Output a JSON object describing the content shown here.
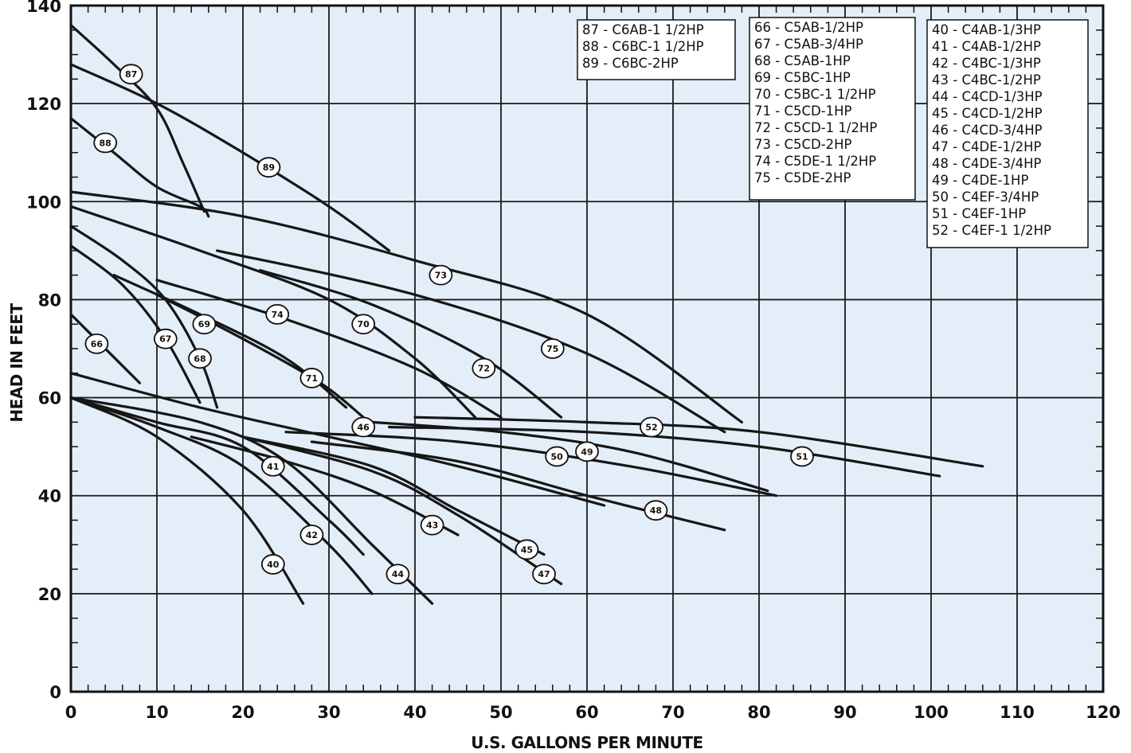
{
  "chart_data": {
    "type": "line",
    "title": "",
    "xlabel": "U.S. GALLONS PER MINUTE",
    "ylabel": "HEAD IN FEET",
    "xlim": [
      0,
      120
    ],
    "ylim": [
      0,
      140
    ],
    "xticks": [
      0,
      10,
      20,
      30,
      40,
      50,
      60,
      70,
      80,
      90,
      100,
      110,
      120
    ],
    "yticks": [
      0,
      20,
      40,
      60,
      80,
      100,
      120,
      140
    ],
    "grid": true,
    "colors": {
      "plot_bg": "#e3eef8",
      "line": "#161616",
      "grid": "#1a1a1a",
      "legend_bg": "#ffffff"
    },
    "legend": [
      [
        "87 - C6AB-1 1/2HP",
        "88 - C6BC-1 1/2HP",
        "89 - C6BC-2HP"
      ],
      [
        "66 - C5AB-1/2HP",
        "67 - C5AB-3/4HP",
        "68 - C5AB-1HP",
        "69 - C5BC-1HP",
        "70 - C5BC-1 1/2HP",
        "71 - C5CD-1HP",
        "72 - C5CD-1 1/2HP",
        "73 - C5CD-2HP",
        "74 - C5DE-1 1/2HP",
        "75 - C5DE-2HP"
      ],
      [
        "40 - C4AB-1/3HP",
        "41 - C4AB-1/2HP",
        "42 - C4BC-1/3HP",
        "43 - C4BC-1/2HP",
        "44 - C4CD-1/3HP",
        "45 - C4CD-1/2HP",
        "46 - C4CD-3/4HP",
        "47 - C4DE-1/2HP",
        "48 - C4DE-3/4HP",
        "49 - C4DE-1HP",
        "50 - C4EF-3/4HP",
        "51 - C4EF-1HP",
        "52 - C4EF-1 1/2HP"
      ]
    ],
    "series": [
      {
        "name": "87",
        "x": [
          0,
          5,
          10,
          13,
          15.5
        ],
        "y": [
          136,
          128,
          119,
          108,
          98
        ],
        "label": [
          7,
          126
        ]
      },
      {
        "name": "88",
        "x": [
          0,
          5,
          10,
          15,
          16
        ],
        "y": [
          117,
          110,
          103,
          99,
          97
        ],
        "label": [
          4,
          112
        ]
      },
      {
        "name": "89",
        "x": [
          0,
          10,
          20,
          30,
          37
        ],
        "y": [
          128,
          120,
          110,
          99,
          90
        ],
        "label": [
          23,
          107
        ]
      },
      {
        "name": "66",
        "x": [
          0,
          4,
          8
        ],
        "y": [
          77,
          70,
          63
        ],
        "label": [
          3,
          71
        ]
      },
      {
        "name": "67",
        "x": [
          0,
          6,
          11,
          15
        ],
        "y": [
          91,
          83,
          72,
          59
        ],
        "label": [
          11,
          72
        ]
      },
      {
        "name": "68",
        "x": [
          0,
          6,
          11,
          15,
          17
        ],
        "y": [
          95,
          88,
          80,
          68,
          58
        ],
        "label": [
          15,
          68
        ]
      },
      {
        "name": "69",
        "x": [
          5,
          15,
          25,
          32
        ],
        "y": [
          85,
          77,
          68,
          58
        ],
        "label": [
          15.5,
          75
        ]
      },
      {
        "name": "70",
        "x": [
          0,
          15,
          30,
          40,
          47
        ],
        "y": [
          99,
          90,
          80,
          68,
          56
        ],
        "label": [
          34,
          75
        ]
      },
      {
        "name": "71",
        "x": [
          10,
          20,
          29,
          34
        ],
        "y": [
          81,
          72,
          63,
          56
        ],
        "label": [
          28,
          64
        ]
      },
      {
        "name": "72",
        "x": [
          22,
          35,
          48,
          57
        ],
        "y": [
          86,
          79,
          68,
          56
        ],
        "label": [
          48,
          66
        ]
      },
      {
        "name": "73",
        "x": [
          0,
          20,
          40,
          60,
          78
        ],
        "y": [
          102,
          97,
          88,
          77,
          55
        ],
        "label": [
          43,
          85
        ]
      },
      {
        "name": "74",
        "x": [
          10,
          25,
          40,
          50
        ],
        "y": [
          84,
          76,
          66,
          56
        ],
        "label": [
          24,
          77
        ]
      },
      {
        "name": "75",
        "x": [
          17,
          40,
          60,
          76
        ],
        "y": [
          90,
          81,
          69,
          53
        ],
        "label": [
          56,
          70
        ]
      },
      {
        "name": "40",
        "x": [
          0,
          10,
          20,
          27
        ],
        "y": [
          60,
          52,
          37,
          18
        ],
        "label": [
          23.5,
          26
        ]
      },
      {
        "name": "41",
        "x": [
          0,
          10,
          20,
          30,
          34
        ],
        "y": [
          60,
          55,
          50,
          35,
          28
        ],
        "label": [
          23.5,
          46
        ]
      },
      {
        "name": "42",
        "x": [
          0,
          10,
          20,
          30,
          35
        ],
        "y": [
          60,
          54,
          46,
          30,
          20
        ],
        "label": [
          28,
          32
        ]
      },
      {
        "name": "43",
        "x": [
          14,
          25,
          35,
          45
        ],
        "y": [
          52,
          47,
          41,
          32
        ],
        "label": [
          42,
          34
        ]
      },
      {
        "name": "44",
        "x": [
          0,
          15,
          25,
          35,
          42
        ],
        "y": [
          60,
          55,
          47,
          30,
          18
        ],
        "label": [
          38,
          24
        ]
      },
      {
        "name": "45",
        "x": [
          20,
          35,
          45,
          55
        ],
        "y": [
          52,
          46,
          37,
          28
        ],
        "label": [
          53,
          29
        ]
      },
      {
        "name": "46",
        "x": [
          0,
          15,
          30,
          45,
          62
        ],
        "y": [
          65,
          58,
          52,
          46,
          38
        ],
        "label": [
          34,
          54
        ]
      },
      {
        "name": "47",
        "x": [
          20,
          35,
          45,
          57
        ],
        "y": [
          52,
          45,
          36,
          22
        ],
        "label": [
          55,
          24
        ]
      },
      {
        "name": "48",
        "x": [
          28,
          45,
          60,
          76
        ],
        "y": [
          51,
          47,
          40,
          33
        ],
        "label": [
          68,
          37
        ]
      },
      {
        "name": "49",
        "x": [
          35,
          50,
          65,
          81
        ],
        "y": [
          55,
          53,
          49,
          41
        ],
        "label": [
          60,
          49
        ]
      },
      {
        "name": "50",
        "x": [
          25,
          45,
          65,
          82
        ],
        "y": [
          53,
          51,
          46,
          40
        ],
        "label": [
          56.5,
          48
        ]
      },
      {
        "name": "51",
        "x": [
          37,
          60,
          80,
          101
        ],
        "y": [
          54,
          53,
          50,
          44
        ],
        "label": [
          85,
          48
        ]
      },
      {
        "name": "52",
        "x": [
          40,
          60,
          80,
          106
        ],
        "y": [
          56,
          55,
          53,
          46
        ],
        "label": [
          67.5,
          54
        ]
      }
    ]
  }
}
